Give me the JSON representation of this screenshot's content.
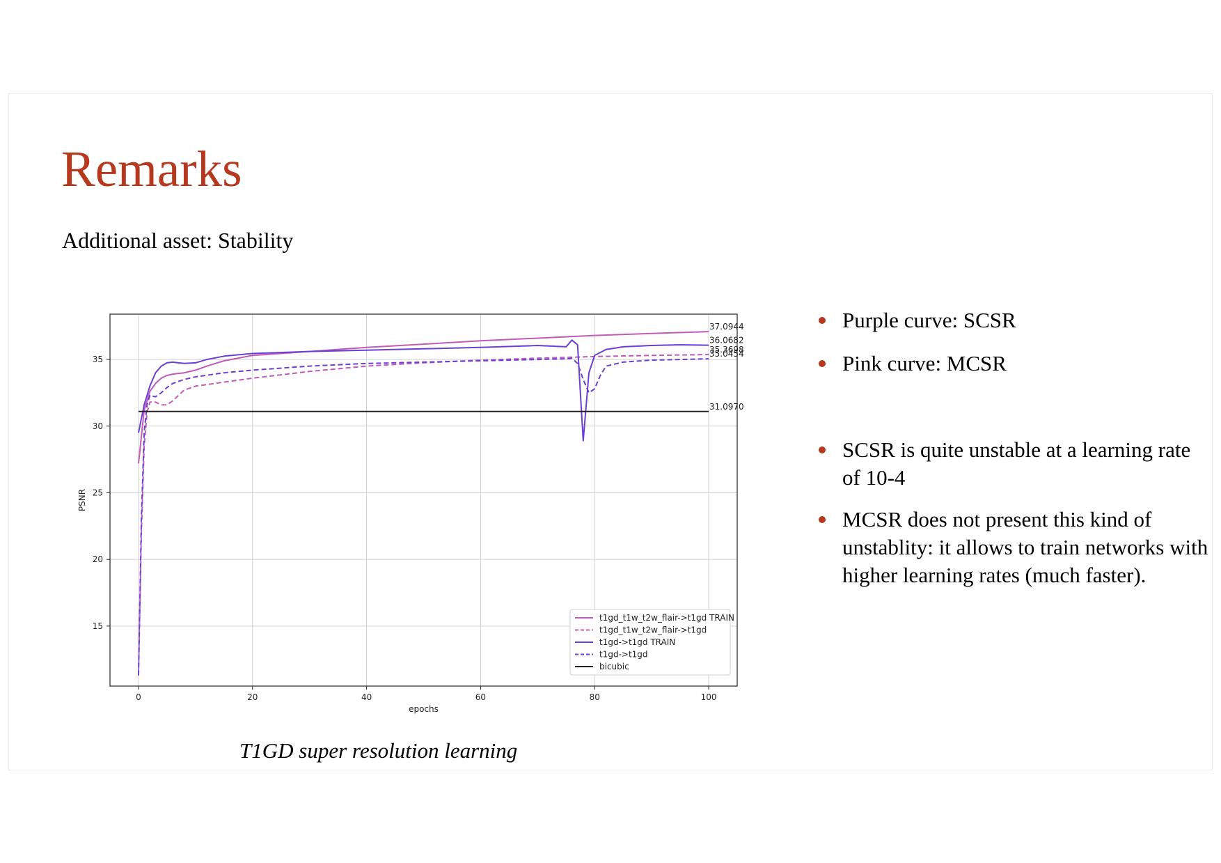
{
  "slide": {
    "title": "Remarks",
    "subtitle": "Additional asset: Stability",
    "caption": "T1GD super resolution learning",
    "bullets_top": [
      "Purple curve: SCSR",
      "Pink curve: MCSR"
    ],
    "bullets_bottom": [
      "SCSR is quite unstable at a learning rate of 10-4",
      "MCSR does not present this kind of unstablity: it allows to train networks with higher learning rates (much faster)."
    ],
    "accent_color": "#b5381f"
  },
  "chart_data": {
    "type": "line",
    "title": "",
    "xlabel": "epochs",
    "ylabel": "PSNR",
    "xlim": [
      -5,
      105
    ],
    "ylim": [
      10.5,
      38.4
    ],
    "xticks": [
      0,
      20,
      40,
      60,
      80,
      100
    ],
    "yticks": [
      15,
      20,
      25,
      30,
      35
    ],
    "grid": true,
    "legend_position": "lower-right",
    "end_labels": [
      "37.0944",
      "36.0682",
      "35.3698",
      "35.0454",
      "31.0970"
    ],
    "series": [
      {
        "name": "t1gd_t1w_t2w_flair->t1gd TRAIN",
        "color": "#c05bb8",
        "dash": false,
        "x": [
          0,
          1,
          2,
          3,
          4,
          5,
          6,
          8,
          10,
          12,
          15,
          20,
          30,
          40,
          50,
          60,
          70,
          80,
          90,
          100
        ],
        "y": [
          27.2,
          31.2,
          32.6,
          33.2,
          33.6,
          33.8,
          33.9,
          34.0,
          34.2,
          34.5,
          34.9,
          35.3,
          35.6,
          35.9,
          36.15,
          36.4,
          36.6,
          36.8,
          36.95,
          37.09
        ]
      },
      {
        "name": "t1gd_t1w_t2w_flair->t1gd",
        "color": "#c05bb8",
        "dash": true,
        "x": [
          0,
          0.5,
          1,
          1.5,
          2,
          3,
          4,
          5,
          6,
          7,
          8,
          10,
          15,
          20,
          30,
          40,
          50,
          60,
          70,
          80,
          90,
          100
        ],
        "y": [
          11.5,
          22.0,
          28.5,
          31.0,
          31.8,
          31.8,
          31.6,
          31.6,
          31.9,
          32.3,
          32.7,
          33.0,
          33.3,
          33.6,
          34.1,
          34.5,
          34.75,
          34.95,
          35.1,
          35.22,
          35.3,
          35.37
        ]
      },
      {
        "name": "t1gd->t1gd TRAIN",
        "color": "#6a3fd4",
        "dash": false,
        "x": [
          0,
          1,
          2,
          3,
          4,
          5,
          6,
          8,
          10,
          12,
          15,
          20,
          30,
          40,
          50,
          60,
          70,
          75,
          76,
          77,
          78,
          79,
          80,
          82,
          85,
          90,
          95,
          100
        ],
        "y": [
          29.5,
          31.6,
          33.0,
          34.0,
          34.5,
          34.75,
          34.8,
          34.7,
          34.75,
          35.0,
          35.25,
          35.45,
          35.6,
          35.7,
          35.8,
          35.9,
          36.05,
          35.95,
          36.45,
          36.1,
          28.9,
          34.0,
          35.3,
          35.75,
          35.95,
          36.05,
          36.1,
          36.07
        ]
      },
      {
        "name": "t1gd->t1gd",
        "color": "#6a3fd4",
        "dash": true,
        "x": [
          0,
          0.5,
          1,
          1.5,
          2,
          3,
          4,
          5,
          6,
          8,
          10,
          15,
          20,
          30,
          40,
          50,
          60,
          70,
          75,
          76,
          77,
          78,
          79,
          80,
          81,
          82,
          85,
          90,
          95,
          100
        ],
        "y": [
          11.3,
          23.0,
          29.5,
          31.6,
          32.3,
          32.2,
          32.5,
          32.9,
          33.2,
          33.5,
          33.7,
          34.0,
          34.2,
          34.5,
          34.7,
          34.8,
          34.9,
          35.0,
          35.05,
          35.1,
          34.7,
          33.5,
          32.5,
          32.8,
          33.8,
          34.5,
          34.8,
          34.95,
          35.0,
          35.05
        ]
      },
      {
        "name": "bicubic",
        "color": "#222222",
        "dash": false,
        "x": [
          0,
          100
        ],
        "y": [
          31.097,
          31.097
        ]
      }
    ]
  }
}
